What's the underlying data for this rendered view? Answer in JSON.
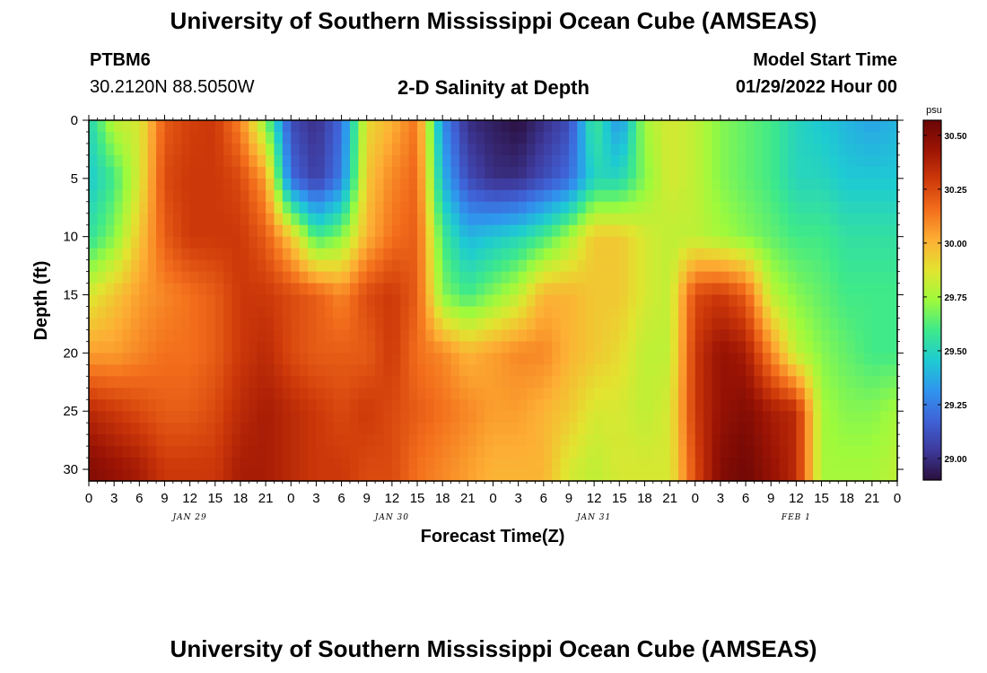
{
  "page": {
    "title_top": "University of Southern Mississippi Ocean Cube (AMSEAS)",
    "title_bottom": "University of Southern Mississippi Ocean Cube (AMSEAS)",
    "station_id": "PTBM6",
    "station_coords": "30.2120N  88.5050W",
    "plot_label": "2-D Salinity at Depth",
    "model_start_label": "Model Start Time",
    "model_start_value": "01/29/2022 Hour 00"
  },
  "colors": {
    "background": "#ffffff",
    "colormap": [
      "#2a0f3d",
      "#3e3a9c",
      "#3f63d8",
      "#2f96ee",
      "#1ecbd2",
      "#3ee98a",
      "#9efa3c",
      "#e2e430",
      "#fdaf34",
      "#f36f1c",
      "#cf3a0a",
      "#9c1404",
      "#6a0606"
    ]
  },
  "chart_data": {
    "type": "heatmap",
    "title": "2-D Salinity at Depth",
    "xlabel": "Forecast Time(Z)",
    "ylabel": "Depth (ft)",
    "x_ticks": [
      "0",
      "3",
      "6",
      "9",
      "12",
      "15",
      "18",
      "21",
      "0",
      "3",
      "6",
      "9",
      "12",
      "15",
      "18",
      "21",
      "0",
      "3",
      "6",
      "9",
      "12",
      "15",
      "18",
      "21",
      "0",
      "3",
      "6",
      "9",
      "12",
      "15",
      "18",
      "21",
      "0"
    ],
    "x_range_hours": [
      0,
      96
    ],
    "date_labels": [
      {
        "text": "JAN 29",
        "hour": 12
      },
      {
        "text": "JAN 30",
        "hour": 36
      },
      {
        "text": "JAN 31",
        "hour": 60
      },
      {
        "text": "FEB 1",
        "hour": 84
      }
    ],
    "y_ticks": [
      0,
      5,
      10,
      15,
      20,
      25,
      30
    ],
    "y_range_ft": [
      0,
      31
    ],
    "colorbar": {
      "unit": "psu",
      "ticks": [
        "30.50",
        "30.25",
        "30.00",
        "29.75",
        "29.50",
        "29.25",
        "29.00"
      ],
      "range": [
        28.9,
        30.57
      ]
    },
    "depths_ft": [
      0,
      5,
      10,
      15,
      20,
      25,
      30
    ],
    "hours": [
      0,
      3,
      6,
      9,
      12,
      15,
      18,
      21,
      24,
      27,
      30,
      33,
      36,
      39,
      42,
      45,
      48,
      51,
      54,
      57,
      60,
      63,
      66,
      69,
      72,
      75,
      78,
      81,
      84,
      87,
      90,
      93,
      96
    ],
    "salinity": [
      [
        29.5,
        29.8,
        29.85,
        30.2,
        30.28,
        30.3,
        30.1,
        29.7,
        29.1,
        29.0,
        29.2,
        29.9,
        30.0,
        30.15,
        29.3,
        29.0,
        28.95,
        28.9,
        29.0,
        29.1,
        29.6,
        29.3,
        29.75,
        29.85,
        29.8,
        29.7,
        29.65,
        29.6,
        29.5,
        29.45,
        29.4,
        29.35,
        29.4
      ],
      [
        29.45,
        29.6,
        29.85,
        30.25,
        30.3,
        30.3,
        30.25,
        30.05,
        29.2,
        29.05,
        29.25,
        29.95,
        30.1,
        30.18,
        29.4,
        29.1,
        29.0,
        29.0,
        29.1,
        29.2,
        29.5,
        29.5,
        29.7,
        29.85,
        29.8,
        29.7,
        29.65,
        29.6,
        29.5,
        29.5,
        29.45,
        29.45,
        29.45
      ],
      [
        29.55,
        29.7,
        29.95,
        30.2,
        30.3,
        30.3,
        30.3,
        30.2,
        29.95,
        29.6,
        29.7,
        30.0,
        30.15,
        30.2,
        29.6,
        29.4,
        29.45,
        29.5,
        29.6,
        29.75,
        29.95,
        29.95,
        29.85,
        29.8,
        29.8,
        29.75,
        29.7,
        29.65,
        29.6,
        29.6,
        29.55,
        29.55,
        29.55
      ],
      [
        29.85,
        29.95,
        30.05,
        30.1,
        30.15,
        30.2,
        30.3,
        30.3,
        30.25,
        30.2,
        30.1,
        30.25,
        30.3,
        30.2,
        29.7,
        29.6,
        29.7,
        29.8,
        30.0,
        30.0,
        29.95,
        29.95,
        29.85,
        29.8,
        30.25,
        30.3,
        30.2,
        29.8,
        29.7,
        29.65,
        29.6,
        29.6,
        29.6
      ],
      [
        30.05,
        30.05,
        30.1,
        30.15,
        30.15,
        30.2,
        30.3,
        30.35,
        30.25,
        30.2,
        30.2,
        30.2,
        30.3,
        30.15,
        30.1,
        30.0,
        30.05,
        30.1,
        30.1,
        30.0,
        29.95,
        29.9,
        29.8,
        29.8,
        30.3,
        30.45,
        30.4,
        30.1,
        29.8,
        29.7,
        29.65,
        29.6,
        29.6
      ],
      [
        30.35,
        30.3,
        30.25,
        30.2,
        30.2,
        30.25,
        30.35,
        30.4,
        30.35,
        30.3,
        30.25,
        30.3,
        30.25,
        30.2,
        30.15,
        30.1,
        30.05,
        30.05,
        30.0,
        29.95,
        29.85,
        29.85,
        29.8,
        29.85,
        30.3,
        30.45,
        30.5,
        30.4,
        30.35,
        29.75,
        29.7,
        29.7,
        29.75
      ],
      [
        30.5,
        30.45,
        30.4,
        30.3,
        30.3,
        30.3,
        30.4,
        30.4,
        30.35,
        30.3,
        30.3,
        30.25,
        30.25,
        30.15,
        30.1,
        30.05,
        30.0,
        30.0,
        30.0,
        29.85,
        29.8,
        29.85,
        29.85,
        29.85,
        30.25,
        30.5,
        30.55,
        30.45,
        30.35,
        29.75,
        29.75,
        29.75,
        29.8
      ]
    ]
  }
}
